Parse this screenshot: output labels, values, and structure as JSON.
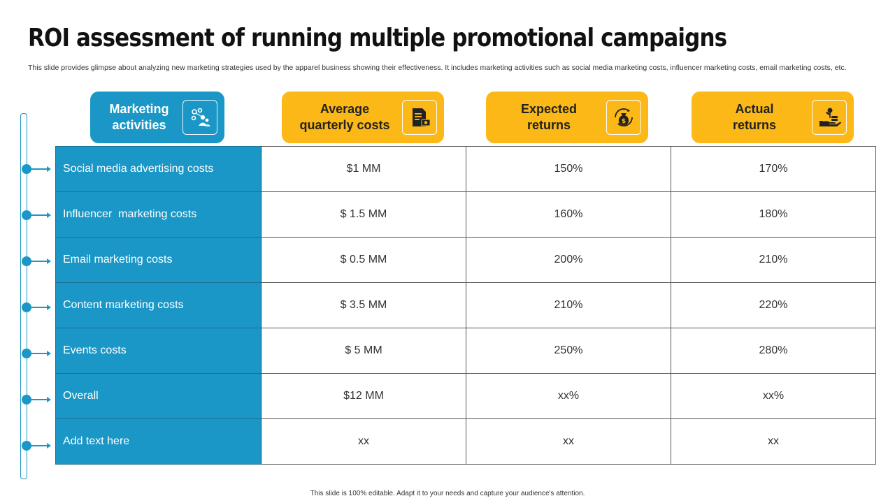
{
  "slide": {
    "title": "ROI assessment of running multiple promotional campaigns",
    "subtitle": "This slide provides glimpse about analyzing new marketing strategies used by the apparel business showing their effectiveness. It includes marketing activities such as social media marketing costs, influencer marketing costs, email marketing costs, etc.",
    "footer": "This slide is 100% editable. Adapt it to your needs and capture your audience's attention."
  },
  "colors": {
    "accent_blue": "#1a97c6",
    "accent_gold": "#fbb817"
  },
  "headers": [
    {
      "label_line1": "Marketing",
      "label_line2": "activities",
      "icon": "network-people-icon"
    },
    {
      "label_line1": "Average",
      "label_line2": "quarterly costs",
      "icon": "document-money-icon"
    },
    {
      "label_line1": "Expected",
      "label_line2": "returns",
      "icon": "money-bag-cycle-icon"
    },
    {
      "label_line1": "Actual",
      "label_line2": "returns",
      "icon": "hand-growth-icon"
    }
  ],
  "rows": [
    {
      "activity": "Social media advertising costs",
      "cost": "$1 MM",
      "expected": "150%",
      "actual": "170%"
    },
    {
      "activity": "Influencer  marketing costs",
      "cost": "$ 1.5 MM",
      "expected": "160%",
      "actual": "180%"
    },
    {
      "activity": "Email marketing costs",
      "cost": "$ 0.5 MM",
      "expected": "200%",
      "actual": "210%"
    },
    {
      "activity": "Content marketing costs",
      "cost": "$ 3.5 MM",
      "expected": "210%",
      "actual": "220%"
    },
    {
      "activity": "Events costs",
      "cost": "$ 5 MM",
      "expected": "250%",
      "actual": "280%"
    },
    {
      "activity": "Overall",
      "cost": "$12 MM",
      "expected": "xx%",
      "actual": "xx%"
    },
    {
      "activity": "Add text here",
      "cost": "xx",
      "expected": "xx",
      "actual": "xx"
    }
  ]
}
